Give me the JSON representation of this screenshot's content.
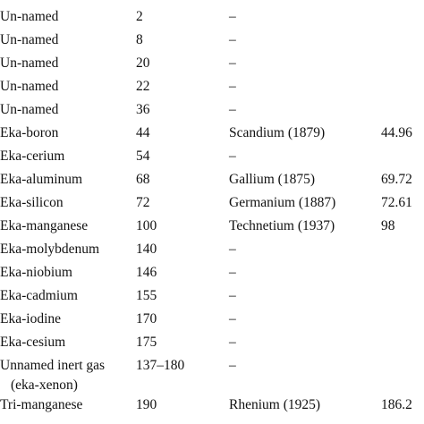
{
  "rows": [
    {
      "name": "Un-named",
      "mass": "2",
      "discovered": "–",
      "actual_mass": ""
    },
    {
      "name": "Un-named",
      "mass": "8",
      "discovered": "–",
      "actual_mass": ""
    },
    {
      "name": "Un-named",
      "mass": "20",
      "discovered": "–",
      "actual_mass": ""
    },
    {
      "name": "Un-named",
      "mass": "22",
      "discovered": "–",
      "actual_mass": ""
    },
    {
      "name": "Un-named",
      "mass": "36",
      "discovered": "–",
      "actual_mass": ""
    },
    {
      "name": "Eka-boron",
      "mass": "44",
      "discovered": "Scandium (1879)",
      "actual_mass": "44.96"
    },
    {
      "name": "Eka-cerium",
      "mass": "54",
      "discovered": "–",
      "actual_mass": ""
    },
    {
      "name": "Eka-aluminum",
      "mass": "68",
      "discovered": "Gallium (1875)",
      "actual_mass": "69.72"
    },
    {
      "name": "Eka-silicon",
      "mass": "72",
      "discovered": "Germanium (1887)",
      "actual_mass": "72.61"
    },
    {
      "name": "Eka-manganese",
      "mass": "100",
      "discovered": "Technetium (1937)",
      "actual_mass": "98"
    },
    {
      "name": "Eka-molybdenum",
      "mass": "140",
      "discovered": "–",
      "actual_mass": ""
    },
    {
      "name": "Eka-niobium",
      "mass": "146",
      "discovered": "–",
      "actual_mass": ""
    },
    {
      "name": "Eka-cadmium",
      "mass": "155",
      "discovered": "–",
      "actual_mass": ""
    },
    {
      "name": "Eka-iodine",
      "mass": "170",
      "discovered": "–",
      "actual_mass": ""
    },
    {
      "name": "Eka-cesium",
      "mass": "175",
      "discovered": "–",
      "actual_mass": ""
    },
    {
      "name": "Unnamed inert gas",
      "name_line2": "(eka-xenon)",
      "mass": "137–180",
      "discovered": "–",
      "actual_mass": ""
    },
    {
      "name": "Tri-manganese",
      "mass": "190",
      "discovered": "Rhenium (1925)",
      "actual_mass": "186.2"
    }
  ]
}
